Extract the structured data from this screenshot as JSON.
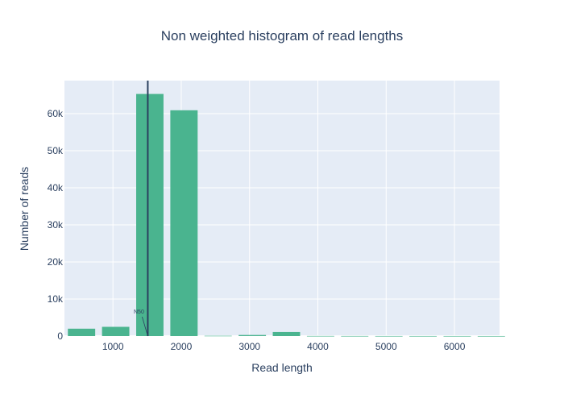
{
  "chart_data": {
    "type": "bar",
    "title": "Non weighted histogram of read lengths",
    "xlabel": "Read length",
    "ylabel": "Number of reads",
    "xlim": [
      290,
      6660
    ],
    "ylim": [
      0,
      68900
    ],
    "x_ticks": [
      1000,
      2000,
      3000,
      4000,
      5000,
      6000
    ],
    "x_tick_labels": [
      "1000",
      "2000",
      "3000",
      "4000",
      "5000",
      "6000"
    ],
    "y_ticks": [
      0,
      10000,
      20000,
      30000,
      40000,
      50000,
      60000
    ],
    "y_tick_labels": [
      "0",
      "10k",
      "20k",
      "30k",
      "40k",
      "50k",
      "60k"
    ],
    "bin_width": 500,
    "bars": [
      {
        "start": 290,
        "value": 2000
      },
      {
        "start": 790,
        "value": 2500
      },
      {
        "start": 1290,
        "value": 65300
      },
      {
        "start": 1790,
        "value": 60900
      },
      {
        "start": 2290,
        "value": 80
      },
      {
        "start": 2790,
        "value": 300
      },
      {
        "start": 3290,
        "value": 1100
      },
      {
        "start": 3790,
        "value": 30
      },
      {
        "start": 4290,
        "value": 20
      },
      {
        "start": 4790,
        "value": 15
      },
      {
        "start": 5290,
        "value": 10
      },
      {
        "start": 5790,
        "value": 10
      },
      {
        "start": 6290,
        "value": 5
      }
    ],
    "bar_color": "#4ab48f",
    "plot_bg": "#e5ecf6",
    "grid": true,
    "vline": {
      "x": 1510,
      "label": "N50",
      "color": "#2a3f5f"
    }
  }
}
